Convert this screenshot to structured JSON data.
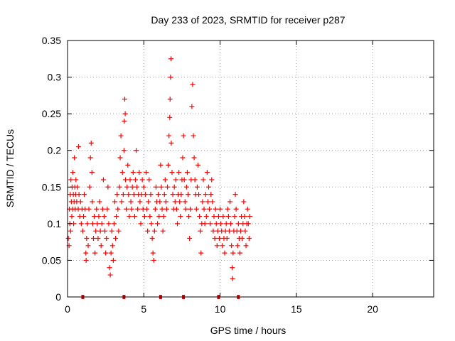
{
  "chart_data": {
    "type": "scatter",
    "title": "Day 233 of 2023, SRMTID for receiver p287",
    "xlabel": "GPS time / hours",
    "ylabel": "SRMTID / TECUs",
    "xlim": [
      0,
      24
    ],
    "ylim": [
      0,
      0.35
    ],
    "x_ticks": [
      0,
      5,
      10,
      15,
      20
    ],
    "x_tick_labels": [
      "0",
      "5",
      "10",
      "15",
      "20"
    ],
    "y_ticks": [
      0,
      0.05,
      0.1,
      0.15,
      0.2,
      0.25,
      0.3,
      0.35
    ],
    "y_tick_labels": [
      "0",
      "0.05",
      "0.1",
      "0.15",
      "0.2",
      "0.25",
      "0.3",
      "0.35"
    ],
    "grid": true,
    "marker": "+",
    "series_color": "#ff0000",
    "marker_color": "#dd0000",
    "series": [
      {
        "name": "SRMTID",
        "points": [
          [
            0.05,
            0.08
          ],
          [
            0.1,
            0.07
          ],
          [
            0.12,
            0.12
          ],
          [
            0.15,
            0.1
          ],
          [
            0.18,
            0.14
          ],
          [
            0.2,
            0.09
          ],
          [
            0.22,
            0.16
          ],
          [
            0.25,
            0.13
          ],
          [
            0.28,
            0.11
          ],
          [
            0.3,
            0.15
          ],
          [
            0.33,
            0.12
          ],
          [
            0.35,
            0.17
          ],
          [
            0.38,
            0.14
          ],
          [
            0.4,
            0.1
          ],
          [
            0.43,
            0.13
          ],
          [
            0.45,
            0.19
          ],
          [
            0.48,
            0.15
          ],
          [
            0.5,
            0.12
          ],
          [
            0.53,
            0.14
          ],
          [
            0.55,
            0.16
          ],
          [
            0.6,
            0.13
          ],
          [
            0.65,
            0.15
          ],
          [
            0.7,
            0.12
          ],
          [
            0.72,
            0.205
          ],
          [
            0.75,
            0.14
          ],
          [
            0.8,
            0.11
          ],
          [
            0.85,
            0.13
          ],
          [
            0.9,
            0.1
          ],
          [
            0.95,
            0.12
          ],
          [
            1.0,
            0.09
          ],
          [
            1.05,
            0.11
          ],
          [
            1.1,
            0.14
          ],
          [
            1.15,
            0.12
          ],
          [
            1.2,
            0.06
          ],
          [
            1.22,
            0.05
          ],
          [
            1.25,
            0.08
          ],
          [
            1.3,
            0.1
          ],
          [
            1.35,
            0.07
          ],
          [
            1.4,
            0.12
          ],
          [
            1.45,
            0.15
          ],
          [
            1.5,
            0.19
          ],
          [
            1.55,
            0.21
          ],
          [
            1.6,
            0.17
          ],
          [
            1.62,
            0.13
          ],
          [
            1.65,
            0.1
          ],
          [
            1.7,
            0.08
          ],
          [
            1.75,
            0.11
          ],
          [
            1.8,
            0.06
          ],
          [
            1.85,
            0.09
          ],
          [
            1.9,
            0.12
          ],
          [
            1.95,
            0.1
          ],
          [
            2.0,
            0.08
          ],
          [
            2.05,
            0.11
          ],
          [
            2.1,
            0.13
          ],
          [
            2.15,
            0.09
          ],
          [
            2.2,
            0.07
          ],
          [
            2.25,
            0.1
          ],
          [
            2.3,
            0.12
          ],
          [
            2.35,
            0.16
          ],
          [
            2.4,
            0.11
          ],
          [
            2.45,
            0.09
          ],
          [
            2.5,
            0.06
          ],
          [
            2.55,
            0.08
          ],
          [
            2.6,
            0.12
          ],
          [
            2.65,
            0.15
          ],
          [
            2.7,
            0.1
          ],
          [
            2.75,
            0.04
          ],
          [
            2.8,
            0.03
          ],
          [
            2.85,
            0.06
          ],
          [
            2.9,
            0.09
          ],
          [
            2.95,
            0.07
          ],
          [
            3.0,
            0.05
          ],
          [
            3.05,
            0.1
          ],
          [
            3.1,
            0.13
          ],
          [
            3.15,
            0.08
          ],
          [
            3.2,
            0.11
          ],
          [
            3.25,
            0.14
          ],
          [
            3.3,
            0.12
          ],
          [
            3.35,
            0.09
          ],
          [
            3.4,
            0.15
          ],
          [
            3.45,
            0.19
          ],
          [
            3.5,
            0.22
          ],
          [
            3.55,
            0.13
          ],
          [
            3.6,
            0.17
          ],
          [
            3.65,
            0.14
          ],
          [
            3.7,
            0.2
          ],
          [
            3.72,
            0.24
          ],
          [
            3.75,
            0.27
          ],
          [
            3.78,
            0.25
          ],
          [
            3.8,
            0.16
          ],
          [
            3.85,
            0.12
          ],
          [
            3.9,
            0.15
          ],
          [
            3.95,
            0.18
          ],
          [
            4.0,
            0.14
          ],
          [
            4.05,
            0.11
          ],
          [
            4.1,
            0.16
          ],
          [
            4.15,
            0.13
          ],
          [
            4.2,
            0.12
          ],
          [
            4.25,
            0.15
          ],
          [
            4.3,
            0.17
          ],
          [
            4.35,
            0.14
          ],
          [
            4.4,
            0.11
          ],
          [
            4.45,
            0.16
          ],
          [
            4.5,
            0.2
          ],
          [
            4.55,
            0.15
          ],
          [
            4.6,
            0.12
          ],
          [
            4.65,
            0.14
          ],
          [
            4.7,
            0.17
          ],
          [
            4.75,
            0.13
          ],
          [
            4.8,
            0.1
          ],
          [
            4.85,
            0.14
          ],
          [
            4.9,
            0.16
          ],
          [
            4.95,
            0.12
          ],
          [
            5.0,
            0.15
          ],
          [
            5.05,
            0.11
          ],
          [
            5.1,
            0.14
          ],
          [
            5.15,
            0.17
          ],
          [
            5.2,
            0.12
          ],
          [
            5.25,
            0.09
          ],
          [
            5.3,
            0.13
          ],
          [
            5.35,
            0.16
          ],
          [
            5.4,
            0.11
          ],
          [
            5.45,
            0.14
          ],
          [
            5.5,
            0.1
          ],
          [
            5.55,
            0.08
          ],
          [
            5.6,
            0.06
          ],
          [
            5.65,
            0.05
          ],
          [
            5.7,
            0.09
          ],
          [
            5.75,
            0.12
          ],
          [
            5.8,
            0.15
          ],
          [
            5.85,
            0.13
          ],
          [
            5.9,
            0.1
          ],
          [
            5.95,
            0.14
          ],
          [
            6.0,
            0.11
          ],
          [
            6.05,
            0.13
          ],
          [
            6.1,
            0.18
          ],
          [
            6.15,
            0.15
          ],
          [
            6.2,
            0.12
          ],
          [
            6.25,
            0.09
          ],
          [
            6.3,
            0.11
          ],
          [
            6.35,
            0.14
          ],
          [
            6.4,
            0.16
          ],
          [
            6.45,
            0.13
          ],
          [
            6.5,
            0.12
          ],
          [
            6.55,
            0.15
          ],
          [
            6.6,
            0.18
          ],
          [
            6.65,
            0.22
          ],
          [
            6.7,
            0.245
          ],
          [
            6.72,
            0.27
          ],
          [
            6.75,
            0.3
          ],
          [
            6.78,
            0.325
          ],
          [
            6.8,
            0.21
          ],
          [
            6.85,
            0.17
          ],
          [
            6.9,
            0.14
          ],
          [
            6.95,
            0.12
          ],
          [
            7.0,
            0.15
          ],
          [
            7.05,
            0.13
          ],
          [
            7.1,
            0.16
          ],
          [
            7.15,
            0.12
          ],
          [
            7.2,
            0.1
          ],
          [
            7.25,
            0.14
          ],
          [
            7.3,
            0.17
          ],
          [
            7.35,
            0.13
          ],
          [
            7.4,
            0.11
          ],
          [
            7.45,
            0.14
          ],
          [
            7.5,
            0.16
          ],
          [
            7.55,
            0.19
          ],
          [
            7.6,
            0.22
          ],
          [
            7.65,
            0.16
          ],
          [
            7.7,
            0.13
          ],
          [
            7.75,
            0.12
          ],
          [
            7.8,
            0.15
          ],
          [
            7.85,
            0.17
          ],
          [
            7.9,
            0.14
          ],
          [
            7.95,
            0.11
          ],
          [
            8.0,
            0.08
          ],
          [
            8.05,
            0.12
          ],
          [
            8.1,
            0.16
          ],
          [
            8.15,
            0.26
          ],
          [
            8.2,
            0.29
          ],
          [
            8.25,
            0.22
          ],
          [
            8.3,
            0.19
          ],
          [
            8.35,
            0.16
          ],
          [
            8.4,
            0.14
          ],
          [
            8.45,
            0.12
          ],
          [
            8.5,
            0.15
          ],
          [
            8.55,
            0.18
          ],
          [
            8.6,
            0.14
          ],
          [
            8.65,
            0.11
          ],
          [
            8.7,
            0.09
          ],
          [
            8.75,
            0.06
          ],
          [
            8.8,
            0.1
          ],
          [
            8.85,
            0.13
          ],
          [
            8.9,
            0.16
          ],
          [
            8.95,
            0.12
          ],
          [
            9.0,
            0.1
          ],
          [
            9.05,
            0.14
          ],
          [
            9.1,
            0.11
          ],
          [
            9.15,
            0.17
          ],
          [
            9.2,
            0.13
          ],
          [
            9.25,
            0.15
          ],
          [
            9.3,
            0.12
          ],
          [
            9.35,
            0.1
          ],
          [
            9.4,
            0.14
          ],
          [
            9.45,
            0.16
          ],
          [
            9.5,
            0.13
          ],
          [
            9.55,
            0.09
          ],
          [
            9.6,
            0.11
          ],
          [
            9.65,
            0.08
          ],
          [
            9.7,
            0.12
          ],
          [
            9.75,
            0.1
          ],
          [
            9.8,
            0.07
          ],
          [
            9.85,
            0.09
          ],
          [
            9.9,
            0.11
          ],
          [
            9.95,
            0.08
          ],
          [
            10.0,
            0.12
          ],
          [
            10.05,
            0.1
          ],
          [
            10.1,
            0.09
          ],
          [
            10.15,
            0.07
          ],
          [
            10.2,
            0.11
          ],
          [
            10.25,
            0.08
          ],
          [
            10.3,
            0.06
          ],
          [
            10.35,
            0.09
          ],
          [
            10.4,
            0.1
          ],
          [
            10.45,
            0.08
          ],
          [
            10.5,
            0.12
          ],
          [
            10.55,
            0.11
          ],
          [
            10.6,
            0.09
          ],
          [
            10.65,
            0.13
          ],
          [
            10.7,
            0.1
          ],
          [
            10.75,
            0.07
          ],
          [
            10.8,
            0.04
          ],
          [
            10.82,
            0.025
          ],
          [
            10.85,
            0.06
          ],
          [
            10.9,
            0.09
          ],
          [
            10.95,
            0.11
          ],
          [
            11.0,
            0.14
          ],
          [
            11.05,
            0.12
          ],
          [
            11.1,
            0.09
          ],
          [
            11.15,
            0.07
          ],
          [
            11.2,
            0.1
          ],
          [
            11.25,
            0.08
          ],
          [
            11.3,
            0.06
          ],
          [
            11.35,
            0.09
          ],
          [
            11.4,
            0.11
          ],
          [
            11.45,
            0.08
          ],
          [
            11.5,
            0.1
          ],
          [
            11.55,
            0.13
          ],
          [
            11.6,
            0.11
          ],
          [
            11.65,
            0.09
          ],
          [
            11.7,
            0.07
          ],
          [
            11.75,
            0.1
          ],
          [
            11.8,
            0.12
          ],
          [
            11.85,
            0.1
          ],
          [
            11.9,
            0.08
          ],
          [
            11.95,
            0.11
          ]
        ]
      }
    ],
    "baseline_markers_x": [
      1.0,
      3.7,
      6.1,
      7.6,
      9.9,
      11.2
    ]
  }
}
